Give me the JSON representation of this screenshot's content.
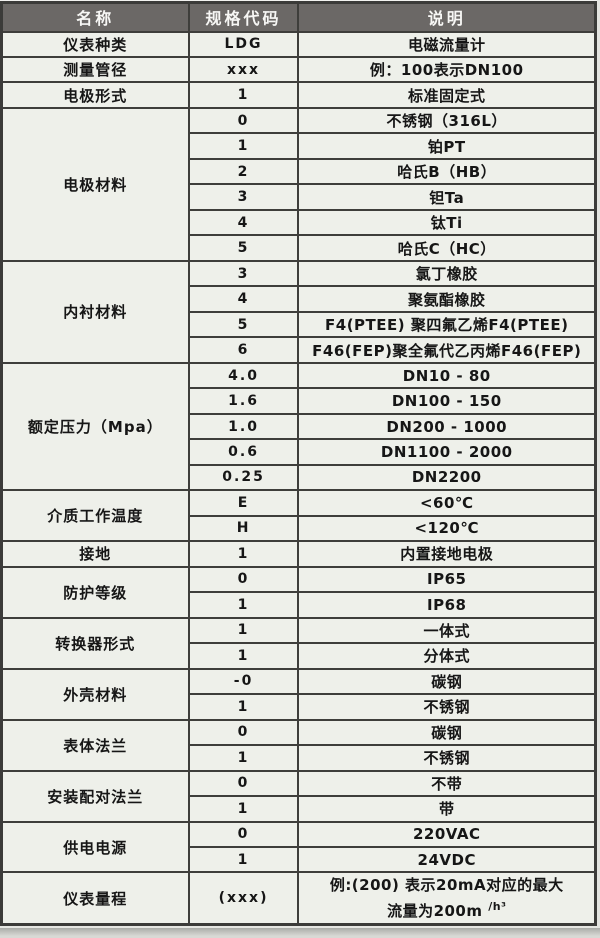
{
  "colors": {
    "header_bg": "#6b6866",
    "header_text": "#f7f7f5",
    "body_bg": "#eef0ea",
    "border": "#3e3e3b",
    "body_text": "#161616"
  },
  "table": {
    "headers": [
      "名称",
      "规格代码",
      "说明"
    ],
    "sections": [
      {
        "name": "仪表种类",
        "rows": [
          {
            "code": "LDG",
            "desc": "电磁流量计"
          }
        ]
      },
      {
        "name": "测量管径",
        "rows": [
          {
            "code": "xxx",
            "desc": "例：100表示DN100"
          }
        ]
      },
      {
        "name": "电极形式",
        "rows": [
          {
            "code": "1",
            "desc": "标准固定式"
          }
        ]
      },
      {
        "name": "电极材料",
        "rows": [
          {
            "code": "0",
            "desc": "不锈钢（316L）"
          },
          {
            "code": "1",
            "desc": "铂PT"
          },
          {
            "code": "2",
            "desc": "哈氏B（HB）"
          },
          {
            "code": "3",
            "desc": "钽Ta"
          },
          {
            "code": "4",
            "desc": "钛Ti"
          },
          {
            "code": "5",
            "desc": "哈氏C（HC）"
          }
        ]
      },
      {
        "name": "内衬材料",
        "rows": [
          {
            "code": "3",
            "desc": "氯丁橡胶"
          },
          {
            "code": "4",
            "desc": "聚氨酯橡胶"
          },
          {
            "code": "5",
            "desc": "F4(PTEE) 聚四氟乙烯F4(PTEE)"
          },
          {
            "code": "6",
            "desc": "F46(FEP)聚全氟代乙丙烯F46(FEP)"
          }
        ]
      },
      {
        "name": "额定压力（Mpa）",
        "rows": [
          {
            "code": "4.0",
            "desc": "DN10 - 80"
          },
          {
            "code": "1.6",
            "desc": "DN100 - 150"
          },
          {
            "code": "1.0",
            "desc": "DN200 - 1000"
          },
          {
            "code": "0.6",
            "desc": "DN1100 - 2000"
          },
          {
            "code": "0.25",
            "desc": "DN2200"
          }
        ]
      },
      {
        "name": "介质工作温度",
        "rows": [
          {
            "code": "E",
            "desc": "<60℃"
          },
          {
            "code": "H",
            "desc": "<120℃"
          }
        ]
      },
      {
        "name": "接地",
        "rows": [
          {
            "code": "1",
            "desc": "内置接地电极"
          }
        ]
      },
      {
        "name": "防护等级",
        "rows": [
          {
            "code": "0",
            "desc": "IP65"
          },
          {
            "code": "1",
            "desc": "IP68"
          }
        ]
      },
      {
        "name": "转换器形式",
        "rows": [
          {
            "code": "1",
            "desc": "一体式"
          },
          {
            "code": "1",
            "desc": "分体式"
          }
        ]
      },
      {
        "name": "外壳材料",
        "rows": [
          {
            "code": "-0",
            "desc": "碳钢"
          },
          {
            "code": "1",
            "desc": "不锈钢"
          }
        ]
      },
      {
        "name": "表体法兰",
        "rows": [
          {
            "code": "0",
            "desc": "碳钢"
          },
          {
            "code": "1",
            "desc": "不锈钢"
          }
        ]
      },
      {
        "name": "安装配对法兰",
        "rows": [
          {
            "code": "0",
            "desc": "不带"
          },
          {
            "code": "1",
            "desc": "带"
          }
        ]
      },
      {
        "name": "供电电源",
        "rows": [
          {
            "code": "0",
            "desc": "220VAC"
          },
          {
            "code": "1",
            "desc": "24VDC"
          }
        ]
      },
      {
        "name": "仪表量程",
        "rows": [
          {
            "code": "(xxx)",
            "desc_lines": [
              "例:(200) 表示20mA对应的最大",
              "流量为200m"
            ],
            "desc_sup": "/h³",
            "tall": true
          }
        ]
      }
    ]
  }
}
